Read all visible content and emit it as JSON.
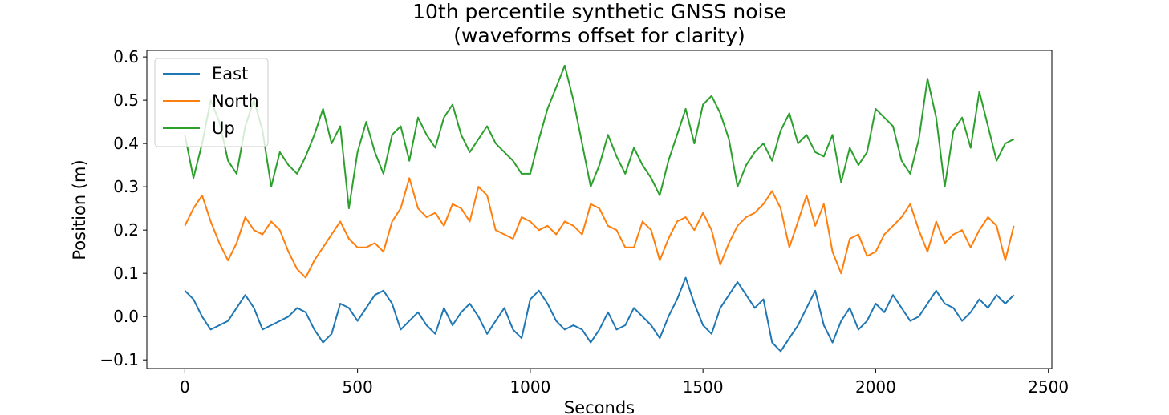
{
  "chart_data": {
    "type": "line",
    "title": "10th percentile synthetic GNSS noise",
    "subtitle": "(waveforms offset for clarity)",
    "xlabel": "Seconds",
    "ylabel": "Position (m)",
    "xlim": [
      -110,
      2510
    ],
    "ylim": [
      -0.12,
      0.615
    ],
    "xticks": [
      0,
      500,
      1000,
      1500,
      2000,
      2500
    ],
    "xtick_labels": [
      "0",
      "500",
      "1000",
      "1500",
      "2000",
      "2500"
    ],
    "yticks": [
      -0.1,
      0.0,
      0.1,
      0.2,
      0.3,
      0.4,
      0.5,
      0.6
    ],
    "ytick_labels": [
      "−0.1",
      "0.0",
      "0.1",
      "0.2",
      "0.3",
      "0.4",
      "0.5",
      "0.6"
    ],
    "grid": false,
    "legend_position": "top-left",
    "series": [
      {
        "name": "East",
        "color": "#1f77b4",
        "x": [
          0,
          25,
          50,
          75,
          100,
          125,
          150,
          175,
          200,
          225,
          250,
          275,
          300,
          325,
          350,
          375,
          400,
          425,
          450,
          475,
          500,
          525,
          550,
          575,
          600,
          625,
          650,
          675,
          700,
          725,
          750,
          775,
          800,
          825,
          850,
          875,
          900,
          925,
          950,
          975,
          1000,
          1025,
          1050,
          1075,
          1100,
          1125,
          1150,
          1175,
          1200,
          1225,
          1250,
          1275,
          1300,
          1325,
          1350,
          1375,
          1400,
          1425,
          1450,
          1475,
          1500,
          1525,
          1550,
          1575,
          1600,
          1625,
          1650,
          1675,
          1700,
          1725,
          1750,
          1775,
          1800,
          1825,
          1850,
          1875,
          1900,
          1925,
          1950,
          1975,
          2000,
          2025,
          2050,
          2075,
          2100,
          2125,
          2150,
          2175,
          2200,
          2225,
          2250,
          2275,
          2300,
          2325,
          2350,
          2375,
          2400
        ],
        "y": [
          0.06,
          0.04,
          0.0,
          -0.03,
          -0.02,
          -0.01,
          0.02,
          0.05,
          0.02,
          -0.03,
          -0.02,
          -0.01,
          0.0,
          0.02,
          0.01,
          -0.03,
          -0.06,
          -0.04,
          0.03,
          0.02,
          -0.01,
          0.02,
          0.05,
          0.06,
          0.03,
          -0.03,
          -0.01,
          0.01,
          -0.02,
          -0.04,
          0.02,
          -0.02,
          0.01,
          0.03,
          0.0,
          -0.04,
          -0.01,
          0.02,
          -0.03,
          -0.05,
          0.04,
          0.06,
          0.03,
          -0.01,
          -0.03,
          -0.02,
          -0.03,
          -0.06,
          -0.03,
          0.01,
          -0.03,
          -0.02,
          0.02,
          0.0,
          -0.02,
          -0.05,
          0.0,
          0.04,
          0.09,
          0.03,
          -0.02,
          -0.04,
          0.02,
          0.05,
          0.08,
          0.05,
          0.02,
          0.04,
          -0.06,
          -0.08,
          -0.05,
          -0.02,
          0.02,
          0.06,
          -0.02,
          -0.06,
          -0.01,
          0.02,
          -0.03,
          -0.01,
          0.03,
          0.01,
          0.05,
          0.02,
          -0.01,
          0.0,
          0.03,
          0.06,
          0.03,
          0.02,
          -0.01,
          0.01,
          0.04,
          0.02,
          0.05,
          0.03,
          0.05
        ]
      },
      {
        "name": "North",
        "color": "#ff7f0e",
        "x": [
          0,
          25,
          50,
          75,
          100,
          125,
          150,
          175,
          200,
          225,
          250,
          275,
          300,
          325,
          350,
          375,
          400,
          425,
          450,
          475,
          500,
          525,
          550,
          575,
          600,
          625,
          650,
          675,
          700,
          725,
          750,
          775,
          800,
          825,
          850,
          875,
          900,
          925,
          950,
          975,
          1000,
          1025,
          1050,
          1075,
          1100,
          1125,
          1150,
          1175,
          1200,
          1225,
          1250,
          1275,
          1300,
          1325,
          1350,
          1375,
          1400,
          1425,
          1450,
          1475,
          1500,
          1525,
          1550,
          1575,
          1600,
          1625,
          1650,
          1675,
          1700,
          1725,
          1750,
          1775,
          1800,
          1825,
          1850,
          1875,
          1900,
          1925,
          1950,
          1975,
          2000,
          2025,
          2050,
          2075,
          2100,
          2125,
          2150,
          2175,
          2200,
          2225,
          2250,
          2275,
          2300,
          2325,
          2350,
          2375,
          2400
        ],
        "y": [
          0.21,
          0.25,
          0.28,
          0.22,
          0.17,
          0.13,
          0.17,
          0.23,
          0.2,
          0.19,
          0.22,
          0.2,
          0.15,
          0.11,
          0.09,
          0.13,
          0.16,
          0.19,
          0.22,
          0.18,
          0.16,
          0.16,
          0.17,
          0.15,
          0.22,
          0.25,
          0.32,
          0.25,
          0.23,
          0.24,
          0.21,
          0.26,
          0.25,
          0.22,
          0.3,
          0.28,
          0.2,
          0.19,
          0.18,
          0.23,
          0.22,
          0.2,
          0.21,
          0.19,
          0.22,
          0.21,
          0.19,
          0.26,
          0.25,
          0.21,
          0.2,
          0.16,
          0.16,
          0.22,
          0.2,
          0.13,
          0.18,
          0.22,
          0.23,
          0.2,
          0.24,
          0.2,
          0.12,
          0.17,
          0.21,
          0.23,
          0.24,
          0.26,
          0.29,
          0.25,
          0.16,
          0.22,
          0.28,
          0.21,
          0.26,
          0.15,
          0.1,
          0.18,
          0.19,
          0.14,
          0.15,
          0.19,
          0.21,
          0.23,
          0.26,
          0.2,
          0.15,
          0.22,
          0.17,
          0.19,
          0.2,
          0.16,
          0.2,
          0.23,
          0.21,
          0.13,
          0.21
        ]
      },
      {
        "name": "Up",
        "color": "#2ca02c",
        "x": [
          0,
          25,
          50,
          75,
          100,
          125,
          150,
          175,
          200,
          225,
          250,
          275,
          300,
          325,
          350,
          375,
          400,
          425,
          450,
          475,
          500,
          525,
          550,
          575,
          600,
          625,
          650,
          675,
          700,
          725,
          750,
          775,
          800,
          825,
          850,
          875,
          900,
          925,
          950,
          975,
          1000,
          1025,
          1050,
          1075,
          1100,
          1125,
          1150,
          1175,
          1200,
          1225,
          1250,
          1275,
          1300,
          1325,
          1350,
          1375,
          1400,
          1425,
          1450,
          1475,
          1500,
          1525,
          1550,
          1575,
          1600,
          1625,
          1650,
          1675,
          1700,
          1725,
          1750,
          1775,
          1800,
          1825,
          1850,
          1875,
          1900,
          1925,
          1950,
          1975,
          2000,
          2025,
          2050,
          2075,
          2100,
          2125,
          2150,
          2175,
          2200,
          2225,
          2250,
          2275,
          2300,
          2325,
          2350,
          2375,
          2400
        ],
        "y": [
          0.42,
          0.32,
          0.4,
          0.5,
          0.45,
          0.36,
          0.33,
          0.44,
          0.5,
          0.43,
          0.3,
          0.38,
          0.35,
          0.33,
          0.37,
          0.42,
          0.48,
          0.4,
          0.44,
          0.25,
          0.38,
          0.45,
          0.38,
          0.33,
          0.42,
          0.44,
          0.36,
          0.46,
          0.42,
          0.39,
          0.46,
          0.49,
          0.42,
          0.38,
          0.41,
          0.44,
          0.4,
          0.38,
          0.36,
          0.33,
          0.33,
          0.41,
          0.48,
          0.53,
          0.58,
          0.5,
          0.4,
          0.3,
          0.35,
          0.42,
          0.37,
          0.33,
          0.39,
          0.35,
          0.32,
          0.28,
          0.36,
          0.42,
          0.48,
          0.4,
          0.49,
          0.51,
          0.47,
          0.41,
          0.3,
          0.35,
          0.38,
          0.4,
          0.36,
          0.43,
          0.47,
          0.4,
          0.42,
          0.38,
          0.37,
          0.42,
          0.31,
          0.39,
          0.35,
          0.38,
          0.48,
          0.46,
          0.44,
          0.36,
          0.33,
          0.41,
          0.55,
          0.46,
          0.3,
          0.43,
          0.46,
          0.39,
          0.52,
          0.44,
          0.36,
          0.4,
          0.41
        ]
      }
    ]
  }
}
